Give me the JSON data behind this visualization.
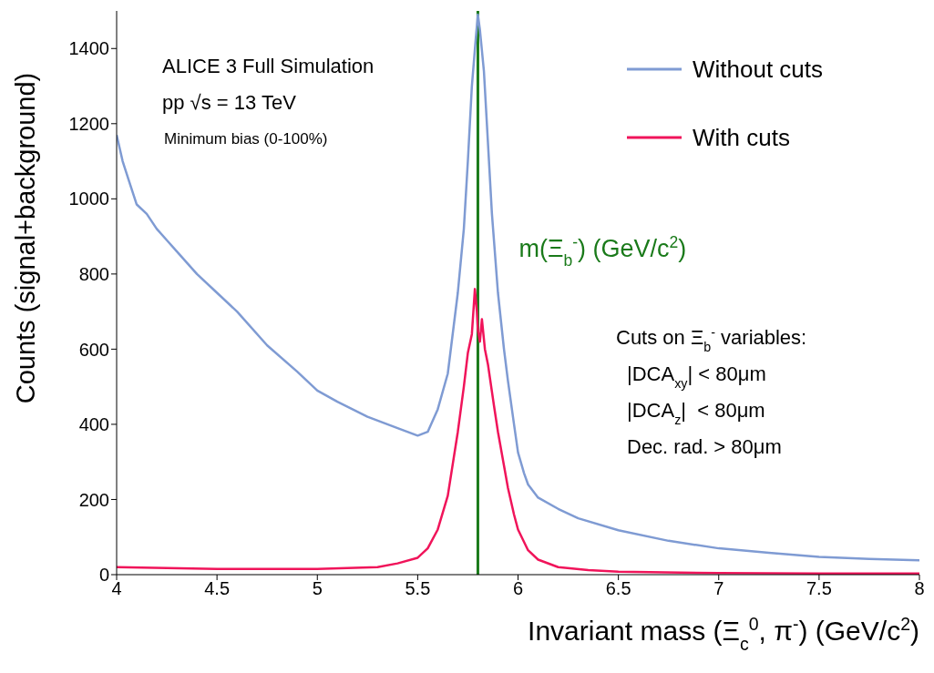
{
  "chart_data": {
    "type": "line",
    "xlabel": "Invariant mass (Ξ$_{c}$$^{0}$, π$^{-}$) (GeV/c$^{2}$)",
    "ylabel": "Counts (signal+background)",
    "xlim": [
      4,
      8
    ],
    "xticks": [
      4,
      4.5,
      5,
      5.5,
      6,
      6.5,
      7,
      7.5,
      8
    ],
    "ylim": [
      0,
      1500
    ],
    "yticks": [
      0,
      200,
      400,
      600,
      800,
      1000,
      1200,
      1400
    ],
    "legend": "top right",
    "marker": "none",
    "line_style": "solid",
    "series": [
      {
        "name": "Without cuts",
        "color": "#7f9bd3",
        "x": [
          4,
          4.03,
          4.06,
          4.1,
          4.15,
          4.2,
          4.25,
          4.3,
          4.4,
          4.5,
          4.6,
          4.75,
          4.9,
          5,
          5.1,
          5.25,
          5.4,
          5.5,
          5.55,
          5.6,
          5.65,
          5.7,
          5.73,
          5.75,
          5.77,
          5.79,
          5.8,
          5.81,
          5.83,
          5.85,
          5.87,
          5.9,
          5.93,
          5.95,
          5.98,
          6,
          6.03,
          6.05,
          6.1,
          6.2,
          6.3,
          6.5,
          6.75,
          7,
          7.25,
          7.5,
          7.75,
          8
        ],
        "values": [
          1170,
          1100,
          1050,
          985,
          960,
          920,
          890,
          860,
          800,
          750,
          700,
          610,
          540,
          490,
          460,
          420,
          390,
          370,
          380,
          440,
          535,
          750,
          920,
          1100,
          1300,
          1430,
          1490,
          1450,
          1340,
          1150,
          960,
          750,
          600,
          515,
          400,
          325,
          270,
          240,
          205,
          175,
          150,
          118,
          90,
          70,
          58,
          47,
          42,
          38
        ]
      },
      {
        "name": "With cuts",
        "color": "#f0145a",
        "x": [
          4,
          4.5,
          5,
          5.3,
          5.4,
          5.5,
          5.55,
          5.6,
          5.65,
          5.7,
          5.73,
          5.75,
          5.77,
          5.785,
          5.795,
          5.8,
          5.81,
          5.82,
          5.835,
          5.85,
          5.88,
          5.9,
          5.93,
          5.95,
          5.98,
          6,
          6.05,
          6.1,
          6.2,
          6.35,
          6.5,
          7,
          7.5,
          8
        ],
        "values": [
          20,
          15,
          15,
          20,
          30,
          45,
          70,
          120,
          210,
          380,
          500,
          590,
          640,
          760,
          700,
          650,
          620,
          680,
          600,
          560,
          450,
          380,
          290,
          230,
          160,
          120,
          65,
          40,
          20,
          12,
          8,
          4,
          3,
          3
        ]
      }
    ],
    "ref_lines": [
      {
        "axis": "x",
        "value": 5.8,
        "label": "m(Ξ$_{b}$$^{-}$) (GeV/c$^{2}$)",
        "color": "#1a7a1a",
        "line_style": "solid"
      }
    ],
    "annotations": [
      "ALICE 3 Full Simulation",
      "pp √s = 13 TeV",
      "Minimum bias (0-100%)",
      "Cuts on Ξ$_{b}$$^{-}$ variables:",
      "|DCA$_{xy}$| < 80μm",
      "|DCA$_{z}$|  < 80μm",
      "Dec. rad. > 80μm"
    ]
  }
}
